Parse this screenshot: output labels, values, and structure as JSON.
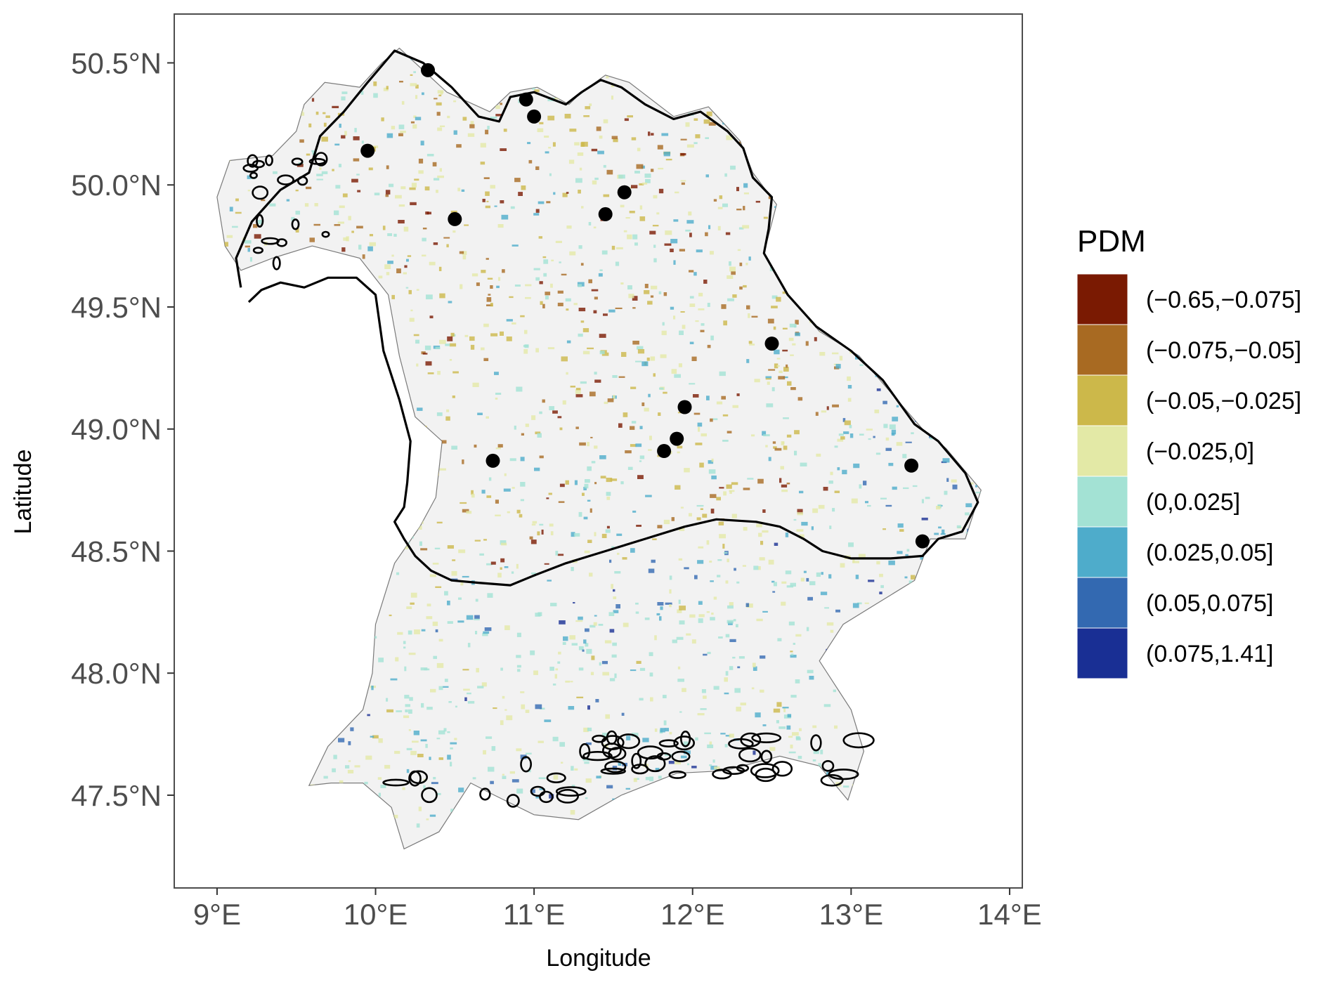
{
  "chart_data": {
    "type": "map",
    "xlabel": "Longitude",
    "ylabel": "Latitude",
    "xlim": [
      8.73,
      14.08
    ],
    "ylim": [
      47.12,
      50.7
    ],
    "x_ticks": [
      {
        "value": 9,
        "label": "9°E"
      },
      {
        "value": 10,
        "label": "10°E"
      },
      {
        "value": 11,
        "label": "11°E"
      },
      {
        "value": 12,
        "label": "12°E"
      },
      {
        "value": 13,
        "label": "13°E"
      },
      {
        "value": 14,
        "label": "14°E"
      }
    ],
    "y_ticks": [
      {
        "value": 47.5,
        "label": "47.5°N"
      },
      {
        "value": 48.0,
        "label": "48.0°N"
      },
      {
        "value": 48.5,
        "label": "48.5°N"
      },
      {
        "value": 49.0,
        "label": "49.0°N"
      },
      {
        "value": 49.5,
        "label": "49.5°N"
      },
      {
        "value": 50.0,
        "label": "50.0°N"
      },
      {
        "value": 50.5,
        "label": "50.5°N"
      }
    ],
    "grid": false,
    "legend": {
      "title": "PDM",
      "position": "right",
      "entries": [
        {
          "label": "(−0.65,−0.075]",
          "color": "#7a1a02"
        },
        {
          "label": "(−0.075,−0.05]",
          "color": "#a86a22"
        },
        {
          "label": "(−0.05,−0.025]",
          "color": "#ccb84a"
        },
        {
          "label": "(−0.025,0]",
          "color": "#e3e9a6"
        },
        {
          "label": "(0,0.025]",
          "color": "#a3e2d4"
        },
        {
          "label": "(0.025,0.05]",
          "color": "#4eaccb"
        },
        {
          "label": "(0.05,0.075]",
          "color": "#3369b1"
        },
        {
          "label": "(0.075,1.41]",
          "color": "#192f94"
        }
      ]
    },
    "points": [
      {
        "lon": 10.33,
        "lat": 50.47
      },
      {
        "lon": 10.95,
        "lat": 50.35
      },
      {
        "lon": 11.0,
        "lat": 50.28
      },
      {
        "lon": 9.95,
        "lat": 50.14
      },
      {
        "lon": 11.57,
        "lat": 49.97
      },
      {
        "lon": 11.45,
        "lat": 49.88
      },
      {
        "lon": 10.5,
        "lat": 49.86
      },
      {
        "lon": 12.5,
        "lat": 49.35
      },
      {
        "lon": 11.95,
        "lat": 49.09
      },
      {
        "lon": 11.9,
        "lat": 48.96
      },
      {
        "lon": 11.82,
        "lat": 48.91
      },
      {
        "lon": 10.74,
        "lat": 48.87
      },
      {
        "lon": 13.38,
        "lat": 48.85
      },
      {
        "lon": 13.45,
        "lat": 48.54
      }
    ],
    "colors": {
      "panel_border": "#4d4d4d",
      "region_fill": "#f2f2f2",
      "outline": "#000000",
      "point": "#000000"
    }
  }
}
